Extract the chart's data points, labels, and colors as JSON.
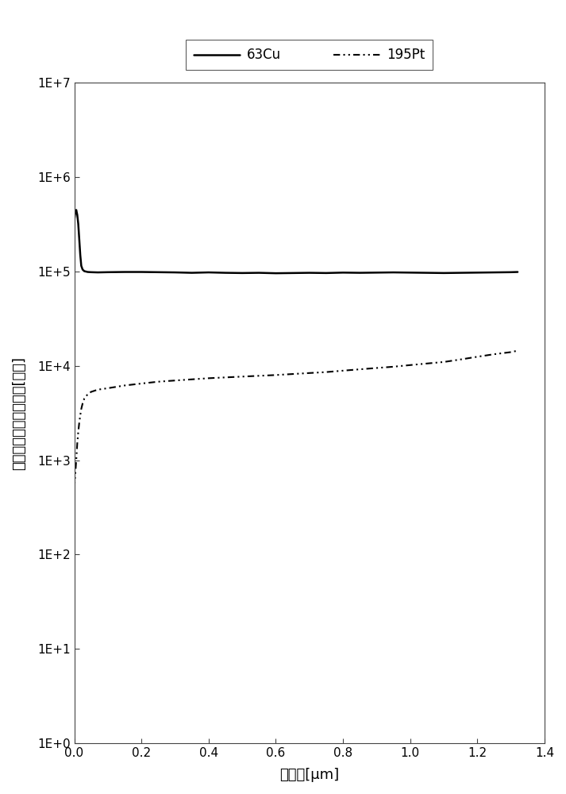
{
  "title": "",
  "xlabel": "深度　[μm]",
  "ylabel": "相対二次イオン強度　[計数]",
  "xlim": [
    0.0,
    1.4
  ],
  "ylim_log": [
    1.0,
    10000000.0
  ],
  "legend_63Cu": "63Cu",
  "legend_195Pt": "195Pt",
  "background_color": "#ffffff",
  "line_color": "#000000",
  "cu_x": [
    0.0,
    0.003,
    0.006,
    0.009,
    0.012,
    0.015,
    0.018,
    0.021,
    0.025,
    0.03,
    0.04,
    0.05,
    0.07,
    0.1,
    0.15,
    0.2,
    0.25,
    0.3,
    0.35,
    0.4,
    0.45,
    0.5,
    0.55,
    0.6,
    0.65,
    0.7,
    0.75,
    0.8,
    0.85,
    0.9,
    0.95,
    1.0,
    1.05,
    1.1,
    1.15,
    1.2,
    1.25,
    1.3,
    1.32
  ],
  "cu_y": [
    350000.0,
    420000.0,
    450000.0,
    400000.0,
    320000.0,
    220000.0,
    150000.0,
    115000.0,
    105000.0,
    101000.0,
    99000.0,
    98500.0,
    98000.0,
    98500.0,
    99000.0,
    99000.0,
    98500.0,
    98000.0,
    97000.0,
    98000.0,
    97000.0,
    96500.0,
    97000.0,
    96000.0,
    96500.0,
    97000.0,
    96500.0,
    97500.0,
    97000.0,
    97500.0,
    98000.0,
    97500.0,
    97000.0,
    96500.0,
    97000.0,
    97500.0,
    98000.0,
    98500.0,
    99000.0
  ],
  "pt_x": [
    0.0,
    0.003,
    0.006,
    0.009,
    0.012,
    0.015,
    0.018,
    0.021,
    0.025,
    0.03,
    0.04,
    0.05,
    0.07,
    0.1,
    0.15,
    0.2,
    0.25,
    0.3,
    0.35,
    0.4,
    0.45,
    0.5,
    0.55,
    0.6,
    0.65,
    0.7,
    0.75,
    0.8,
    0.85,
    0.9,
    0.95,
    1.0,
    1.05,
    1.1,
    1.15,
    1.2,
    1.25,
    1.3,
    1.32
  ],
  "pt_y": [
    500.0,
    700.0,
    1000.0,
    1500.0,
    2000.0,
    2500.0,
    3000.0,
    3500.0,
    4000.0,
    4500.0,
    5000.0,
    5300.0,
    5600.0,
    5800.0,
    6200.0,
    6500.0,
    6800.0,
    7000.0,
    7200.0,
    7400.0,
    7550.0,
    7700.0,
    7850.0,
    8000.0,
    8200.0,
    8400.0,
    8600.0,
    8900.0,
    9200.0,
    9500.0,
    9800.0,
    10200.0,
    10600.0,
    11000.0,
    11700.0,
    12500.0,
    13300.0,
    14000.0,
    14500.0
  ],
  "xticks": [
    0.0,
    0.2,
    0.4,
    0.6,
    0.8,
    1.0,
    1.2,
    1.4
  ],
  "ytick_vals": [
    1.0,
    10.0,
    100.0,
    1000.0,
    10000.0,
    100000.0,
    1000000.0,
    10000000.0
  ],
  "ytick_labels": [
    "1E+0",
    "1E+1",
    "1E+2",
    "1E+3",
    "1E+4",
    "1E+5",
    "1E+6",
    "1E+7"
  ]
}
